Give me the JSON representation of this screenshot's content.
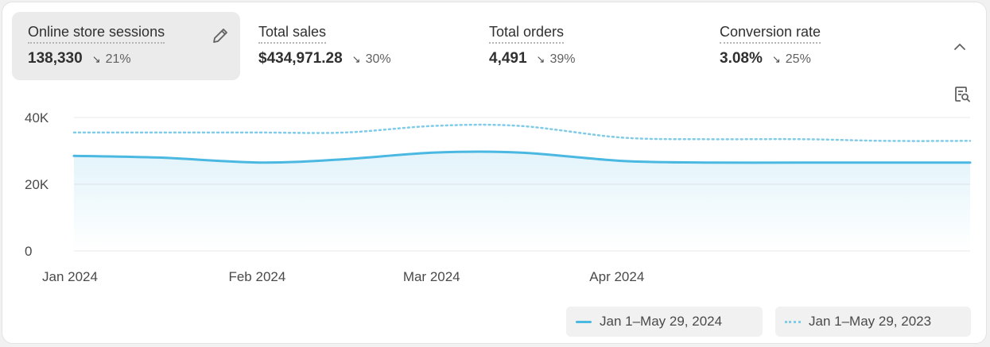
{
  "metrics": [
    {
      "label": "Online store sessions",
      "value": "138,330",
      "change": "21%",
      "trend_icon": "arrow-down-right-icon"
    },
    {
      "label": "Total sales",
      "value": "$434,971.28",
      "change": "30%",
      "trend_icon": "arrow-down-right-icon"
    },
    {
      "label": "Total orders",
      "value": "4,491",
      "change": "39%",
      "trend_icon": "arrow-down-right-icon"
    },
    {
      "label": "Conversion rate",
      "value": "3.08%",
      "change": "25%",
      "trend_icon": "arrow-down-right-icon"
    }
  ],
  "icons": {
    "edit": "pencil-icon",
    "collapse": "chevron-up-icon",
    "explore": "report-search-icon"
  },
  "colors": {
    "primary": "#4ab8e1",
    "comparison": "#7fcbe8",
    "selected_bg": "#ebebeb",
    "grid": "#e8e8e8"
  },
  "chart_data": {
    "type": "line",
    "x": [
      "2024-01-01",
      "2024-01-15",
      "2024-02-01",
      "2024-02-15",
      "2024-03-01",
      "2024-03-15",
      "2024-04-01",
      "2024-04-15",
      "2024-05-01",
      "2024-05-15",
      "2024-05-29"
    ],
    "x_ticks": [
      "Jan 2024",
      "Feb 2024",
      "Mar 2024",
      "Apr 2024"
    ],
    "y_ticks": [
      "0",
      "20K",
      "40K"
    ],
    "ylim": [
      0,
      40000
    ],
    "series": [
      {
        "name": "Jan 1–May 29, 2024",
        "style": "solid",
        "values": [
          28500,
          28000,
          26500,
          27500,
          29500,
          29500,
          27000,
          26500,
          26500,
          26500,
          26500
        ]
      },
      {
        "name": "Jan 1–May 29, 2023",
        "style": "dotted",
        "values": [
          35500,
          35500,
          35500,
          35500,
          37500,
          37500,
          34000,
          33500,
          33500,
          33000,
          33000
        ]
      }
    ],
    "grid": true,
    "legend_position": "bottom-right"
  }
}
